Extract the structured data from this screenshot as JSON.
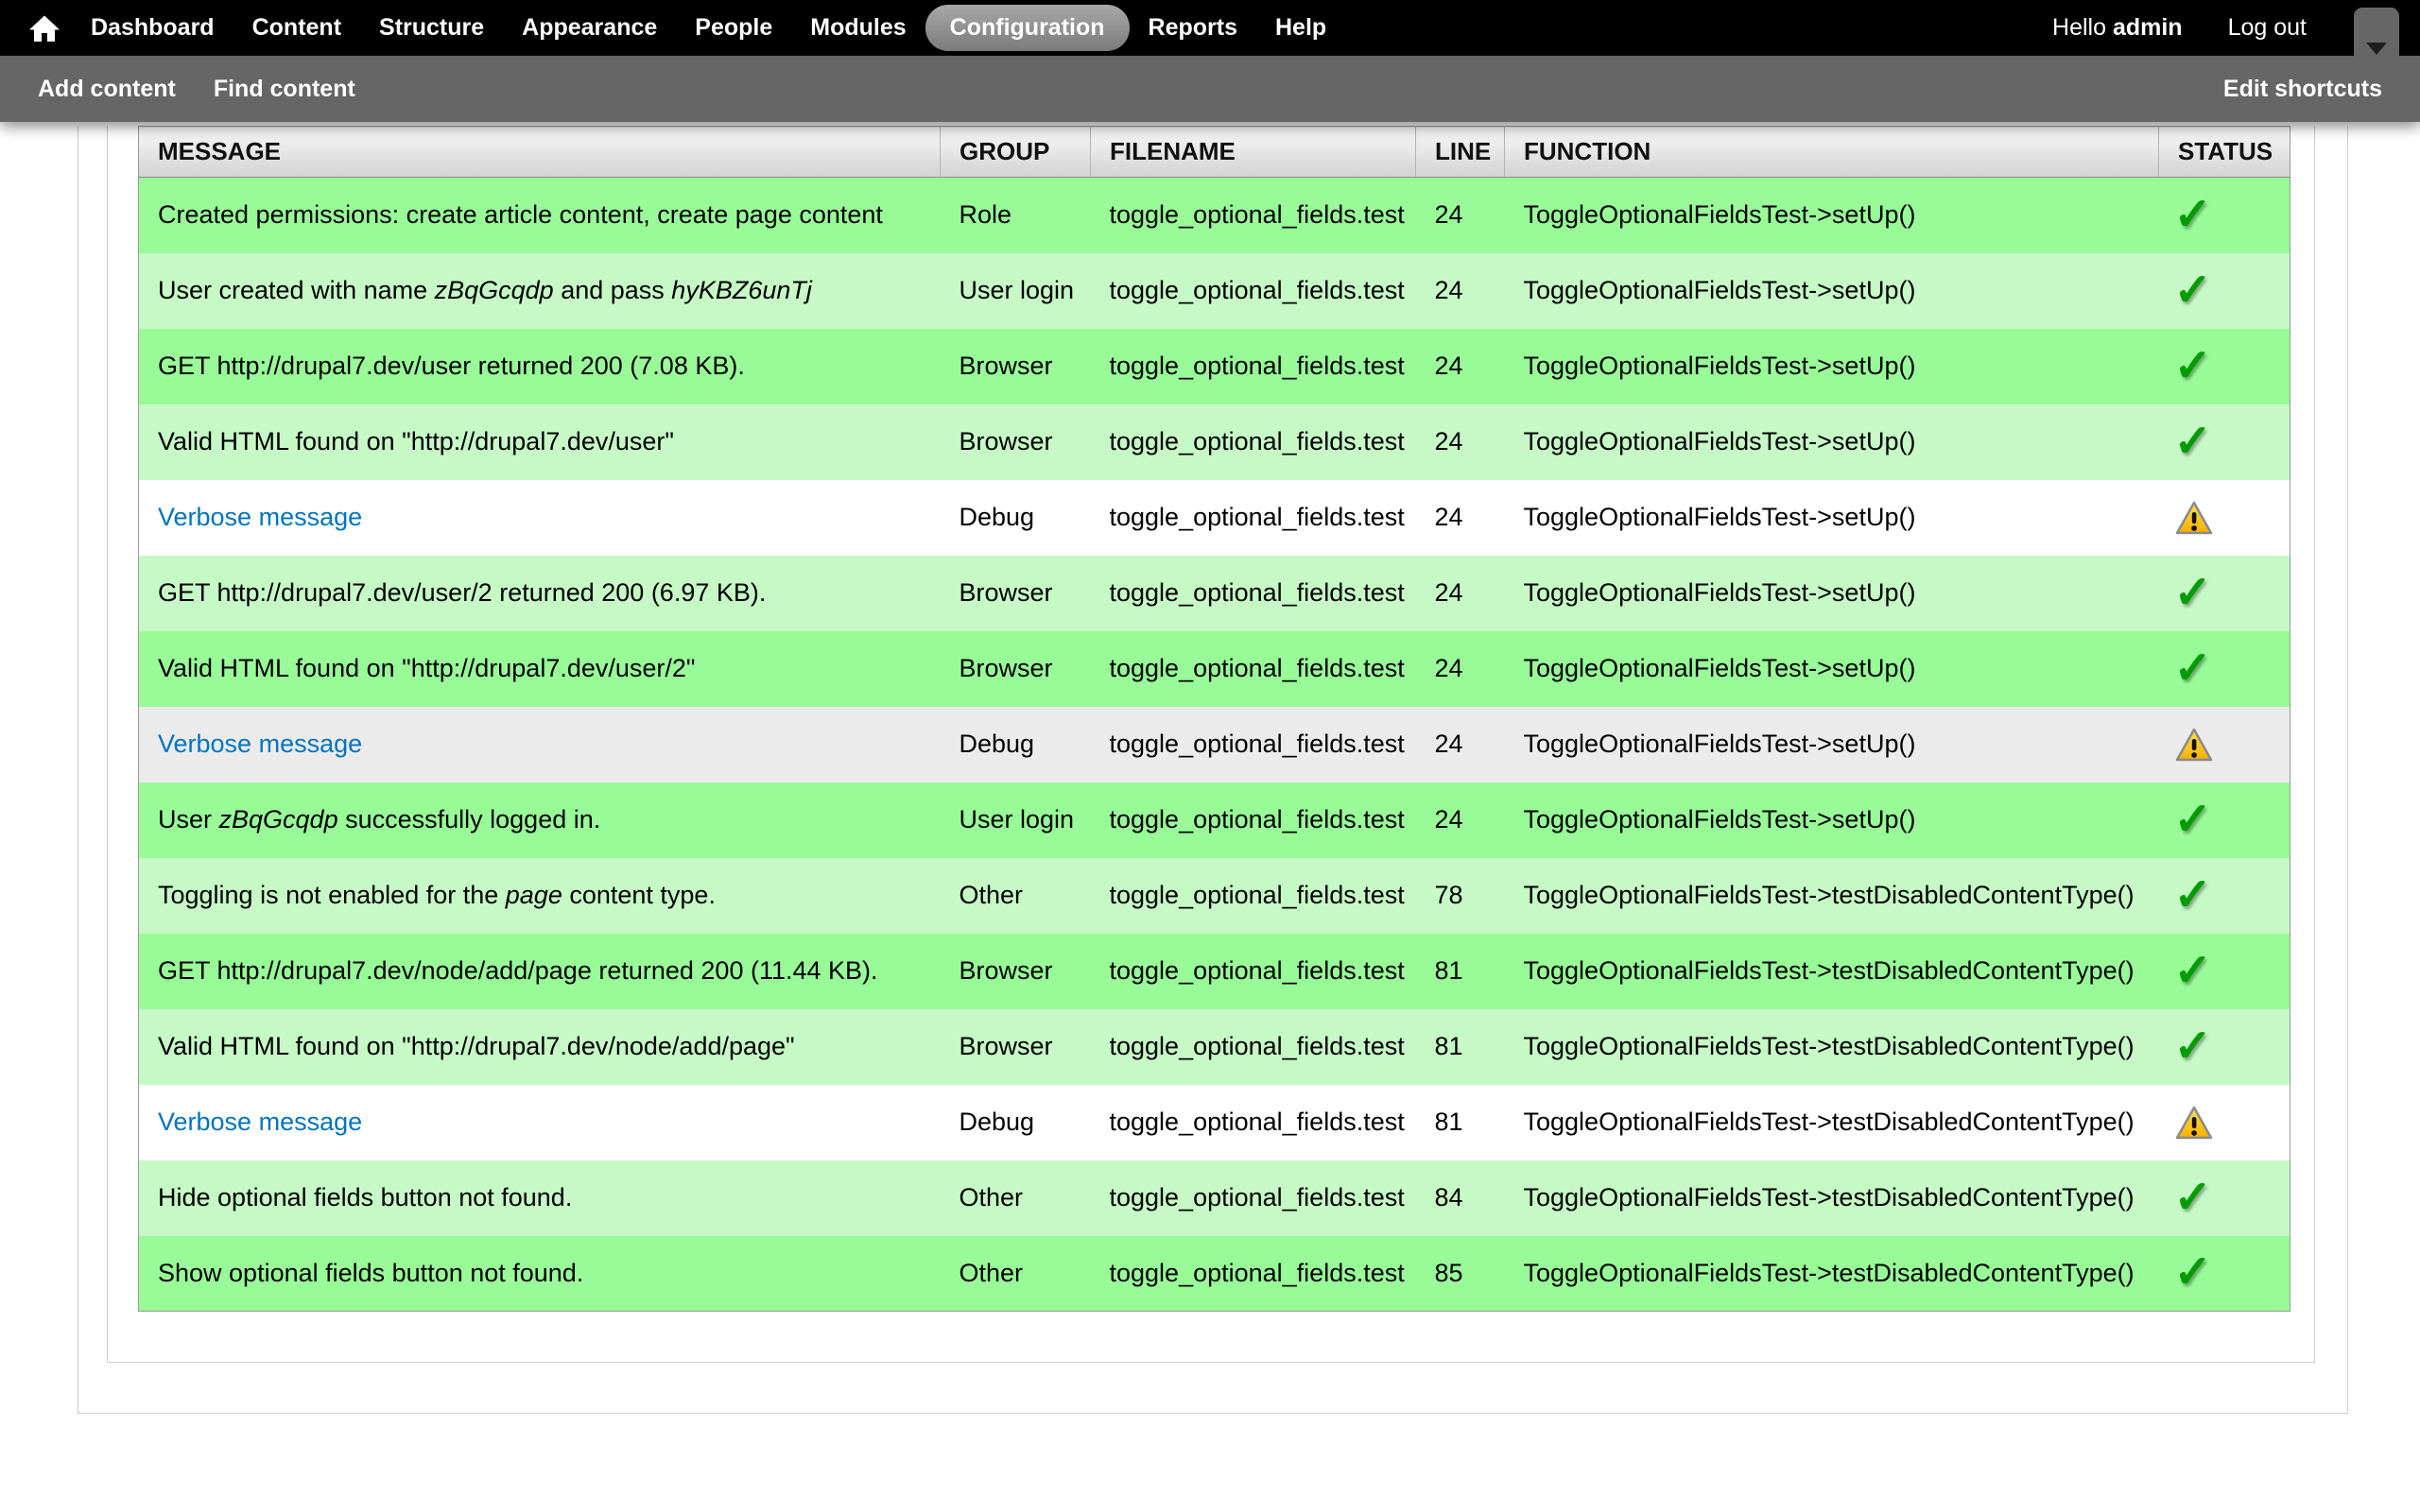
{
  "toolbar": {
    "menu": [
      {
        "label": "Dashboard",
        "active": false
      },
      {
        "label": "Content",
        "active": false
      },
      {
        "label": "Structure",
        "active": false
      },
      {
        "label": "Appearance",
        "active": false
      },
      {
        "label": "People",
        "active": false
      },
      {
        "label": "Modules",
        "active": false
      },
      {
        "label": "Configuration",
        "active": true
      },
      {
        "label": "Reports",
        "active": false
      },
      {
        "label": "Help",
        "active": false
      }
    ],
    "greeting_prefix": "Hello ",
    "username": "admin",
    "logout_label": "Log out"
  },
  "shortcuts": {
    "left": [
      "Add content",
      "Find content"
    ],
    "right": "Edit shortcuts"
  },
  "table": {
    "columns": [
      "MESSAGE",
      "GROUP",
      "FILENAME",
      "LINE",
      "FUNCTION",
      "STATUS"
    ],
    "rows": [
      {
        "message": [
          {
            "text": "Created permissions: create article content, create page content"
          }
        ],
        "group": "Role",
        "filename": "toggle_optional_fields.test",
        "line": "24",
        "function": "ToggleOptionalFieldsTest->setUp()",
        "status": "pass",
        "style": "pass-odd"
      },
      {
        "message": [
          {
            "text": "User created with name "
          },
          {
            "text": "zBqGcqdp",
            "italic": true
          },
          {
            "text": " and pass "
          },
          {
            "text": "hyKBZ6unTj",
            "italic": true
          }
        ],
        "group": "User login",
        "filename": "toggle_optional_fields.test",
        "line": "24",
        "function": "ToggleOptionalFieldsTest->setUp()",
        "status": "pass",
        "style": "pass-even"
      },
      {
        "message": [
          {
            "text": "GET http://drupal7.dev/user returned 200 (7.08 KB)."
          }
        ],
        "group": "Browser",
        "filename": "toggle_optional_fields.test",
        "line": "24",
        "function": "ToggleOptionalFieldsTest->setUp()",
        "status": "pass",
        "style": "pass-odd"
      },
      {
        "message": [
          {
            "text": "Valid HTML found on \"http://drupal7.dev/user\""
          }
        ],
        "group": "Browser",
        "filename": "toggle_optional_fields.test",
        "line": "24",
        "function": "ToggleOptionalFieldsTest->setUp()",
        "status": "pass",
        "style": "pass-even"
      },
      {
        "message": [
          {
            "text": "Verbose message",
            "link": true
          }
        ],
        "group": "Debug",
        "filename": "toggle_optional_fields.test",
        "line": "24",
        "function": "ToggleOptionalFieldsTest->setUp()",
        "status": "warning",
        "style": "debug-odd"
      },
      {
        "message": [
          {
            "text": "GET http://drupal7.dev/user/2 returned 200 (6.97 KB)."
          }
        ],
        "group": "Browser",
        "filename": "toggle_optional_fields.test",
        "line": "24",
        "function": "ToggleOptionalFieldsTest->setUp()",
        "status": "pass",
        "style": "pass-even"
      },
      {
        "message": [
          {
            "text": "Valid HTML found on \"http://drupal7.dev/user/2\""
          }
        ],
        "group": "Browser",
        "filename": "toggle_optional_fields.test",
        "line": "24",
        "function": "ToggleOptionalFieldsTest->setUp()",
        "status": "pass",
        "style": "pass-odd"
      },
      {
        "message": [
          {
            "text": "Verbose message",
            "link": true
          }
        ],
        "group": "Debug",
        "filename": "toggle_optional_fields.test",
        "line": "24",
        "function": "ToggleOptionalFieldsTest->setUp()",
        "status": "warning",
        "style": "debug-even"
      },
      {
        "message": [
          {
            "text": "User "
          },
          {
            "text": "zBqGcqdp",
            "italic": true
          },
          {
            "text": " successfully logged in."
          }
        ],
        "group": "User login",
        "filename": "toggle_optional_fields.test",
        "line": "24",
        "function": "ToggleOptionalFieldsTest->setUp()",
        "status": "pass",
        "style": "pass-odd"
      },
      {
        "message": [
          {
            "text": "Toggling is not enabled for the "
          },
          {
            "text": "page",
            "italic": true
          },
          {
            "text": " content type."
          }
        ],
        "group": "Other",
        "filename": "toggle_optional_fields.test",
        "line": "78",
        "function": "ToggleOptionalFieldsTest->testDisabledContentType()",
        "status": "pass",
        "style": "pass-even"
      },
      {
        "message": [
          {
            "text": "GET http://drupal7.dev/node/add/page returned 200 (11.44 KB)."
          }
        ],
        "group": "Browser",
        "filename": "toggle_optional_fields.test",
        "line": "81",
        "function": "ToggleOptionalFieldsTest->testDisabledContentType()",
        "status": "pass",
        "style": "pass-odd"
      },
      {
        "message": [
          {
            "text": "Valid HTML found on \"http://drupal7.dev/node/add/page\""
          }
        ],
        "group": "Browser",
        "filename": "toggle_optional_fields.test",
        "line": "81",
        "function": "ToggleOptionalFieldsTest->testDisabledContentType()",
        "status": "pass",
        "style": "pass-even"
      },
      {
        "message": [
          {
            "text": "Verbose message",
            "link": true
          }
        ],
        "group": "Debug",
        "filename": "toggle_optional_fields.test",
        "line": "81",
        "function": "ToggleOptionalFieldsTest->testDisabledContentType()",
        "status": "warning",
        "style": "debug-odd"
      },
      {
        "message": [
          {
            "text": "Hide optional fields button not found."
          }
        ],
        "group": "Other",
        "filename": "toggle_optional_fields.test",
        "line": "84",
        "function": "ToggleOptionalFieldsTest->testDisabledContentType()",
        "status": "pass",
        "style": "pass-even"
      },
      {
        "message": [
          {
            "text": "Show optional fields button not found."
          }
        ],
        "group": "Other",
        "filename": "toggle_optional_fields.test",
        "line": "85",
        "function": "ToggleOptionalFieldsTest->testDisabledContentType()",
        "status": "pass",
        "style": "pass-odd"
      }
    ]
  },
  "icons": {
    "check_glyph": "✓",
    "home": "home-icon",
    "caret": "caret-down-icon",
    "warning": "warning-icon"
  },
  "colors": {
    "toolbar_bg": "#000000",
    "shortcut_bg": "#666666",
    "pass_odd": "#98fb98",
    "pass_even": "#c6f9c6",
    "debug_even": "#ebebeb",
    "link": "#0074bd",
    "check_green": "#009c00",
    "warning_yellow": "#f6ae00"
  }
}
